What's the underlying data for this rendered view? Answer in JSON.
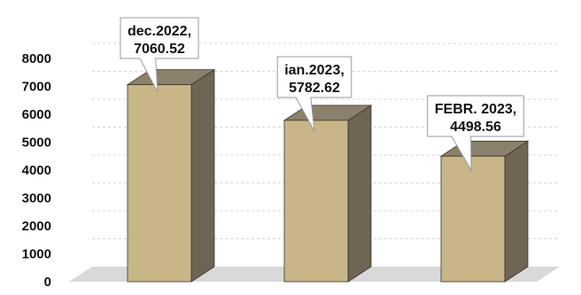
{
  "chart_data": {
    "type": "bar",
    "categories": [
      "dec.2022",
      "ian.2023",
      "FEBR. 2023"
    ],
    "values": [
      7060.52,
      5782.62,
      4498.56
    ],
    "data_labels": [
      [
        "dec.2022,",
        "7060.52"
      ],
      [
        "ian.2023,",
        "5782.62"
      ],
      [
        "FEBR. 2023,",
        "4498.56"
      ]
    ],
    "ylim": [
      0,
      8000
    ],
    "yticks": [
      "0",
      "1000",
      "2000",
      "3000",
      "4000",
      "5000",
      "6000",
      "7000",
      "8000"
    ],
    "grid": true,
    "legend": "none",
    "three_d": true,
    "colors": {
      "bar_front": "#c8b588",
      "bar_side": "#6f6555",
      "bar_top": "#8a806c",
      "floor": "#d9d9d9",
      "grid": "#d4d4d4"
    }
  }
}
